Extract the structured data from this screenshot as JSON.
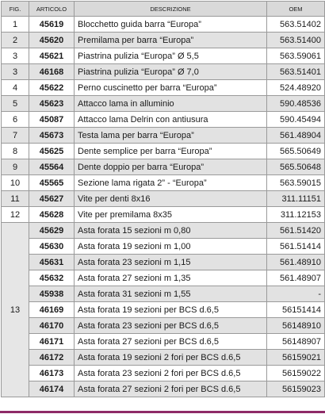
{
  "header": {
    "fig": "FIG.",
    "articolo": "ARTICOLO",
    "descrizione": "DESCRIZIONE",
    "oem": "OEM"
  },
  "groups": [
    {
      "fig": "1",
      "items": [
        {
          "articolo": "45619",
          "descrizione": "Blocchetto guida barra “Europa”",
          "oem": "563.51402"
        }
      ]
    },
    {
      "fig": "2",
      "items": [
        {
          "articolo": "45620",
          "descrizione": "Premilama per barra “Europa”",
          "oem": "563.51400"
        }
      ]
    },
    {
      "fig": "3",
      "items": [
        {
          "articolo": "45621",
          "descrizione": "Piastrina pulizia “Europa” Ø 5,5",
          "oem": "563.59061"
        }
      ]
    },
    {
      "fig": "3",
      "items": [
        {
          "articolo": "46168",
          "descrizione": "Piastrina pulizia “Europa” Ø 7,0",
          "oem": "563.51401"
        }
      ]
    },
    {
      "fig": "4",
      "items": [
        {
          "articolo": "45622",
          "descrizione": "Perno cuscinetto per barra “Europa”",
          "oem": "524.48920"
        }
      ]
    },
    {
      "fig": "5",
      "items": [
        {
          "articolo": "45623",
          "descrizione": "Attacco lama in alluminio",
          "oem": "590.48536"
        }
      ]
    },
    {
      "fig": "6",
      "items": [
        {
          "articolo": "45087",
          "descrizione": "Attacco lama Delrin con antiusura",
          "oem": "590.45494"
        }
      ]
    },
    {
      "fig": "7",
      "items": [
        {
          "articolo": "45673",
          "descrizione": "Testa lama per barra “Europa”",
          "oem": "561.48904"
        }
      ]
    },
    {
      "fig": "8",
      "items": [
        {
          "articolo": "45625",
          "descrizione": "Dente semplice per barra “Europa”",
          "oem": "565.50649"
        }
      ]
    },
    {
      "fig": "9",
      "items": [
        {
          "articolo": "45564",
          "descrizione": "Dente doppio per barra “Europa”",
          "oem": "565.50648"
        }
      ]
    },
    {
      "fig": "10",
      "items": [
        {
          "articolo": "45565",
          "descrizione": "Sezione lama rigata 2” - “Europa”",
          "oem": "563.59015"
        }
      ]
    },
    {
      "fig": "11",
      "items": [
        {
          "articolo": "45627",
          "descrizione": "Vite per denti 8x16",
          "oem": "311.11151"
        }
      ]
    },
    {
      "fig": "12",
      "items": [
        {
          "articolo": "45628",
          "descrizione": "Vite per premilama 8x35",
          "oem": "311.12153"
        }
      ]
    },
    {
      "fig": "13",
      "items": [
        {
          "articolo": "45629",
          "descrizione": "Asta forata 15 sezioni m 0,80",
          "oem": "561.51420"
        },
        {
          "articolo": "45630",
          "descrizione": "Asta forata 19 sezioni m 1,00",
          "oem": "561.51414"
        },
        {
          "articolo": "45631",
          "descrizione": "Asta forata 23 sezioni m 1,15",
          "oem": "561.48910"
        },
        {
          "articolo": "45632",
          "descrizione": "Asta forata 27 sezioni m 1,35",
          "oem": "561.48907"
        },
        {
          "articolo": "45938",
          "descrizione": "Asta forata 31 sezioni m 1,55",
          "oem": "-"
        },
        {
          "articolo": "46169",
          "descrizione": "Asta forata 19 sezioni per BCS d.6,5",
          "oem": "56151414"
        },
        {
          "articolo": "46170",
          "descrizione": "Asta forata 23 sezioni per BCS d.6,5",
          "oem": "56148910"
        },
        {
          "articolo": "46171",
          "descrizione": "Asta forata 27 sezioni per BCS d.6,5",
          "oem": "56148907"
        },
        {
          "articolo": "46172",
          "descrizione": "Asta forata 19 sezioni 2 fori per BCS d.6,5",
          "oem": "56159021"
        },
        {
          "articolo": "46173",
          "descrizione": "Asta forata 23 sezioni 2 fori per BCS d.6,5",
          "oem": "56159022"
        },
        {
          "articolo": "46174",
          "descrizione": "Asta forata 27 sezioni 2 fori per BCS d.6,5",
          "oem": "56159023"
        }
      ]
    }
  ]
}
